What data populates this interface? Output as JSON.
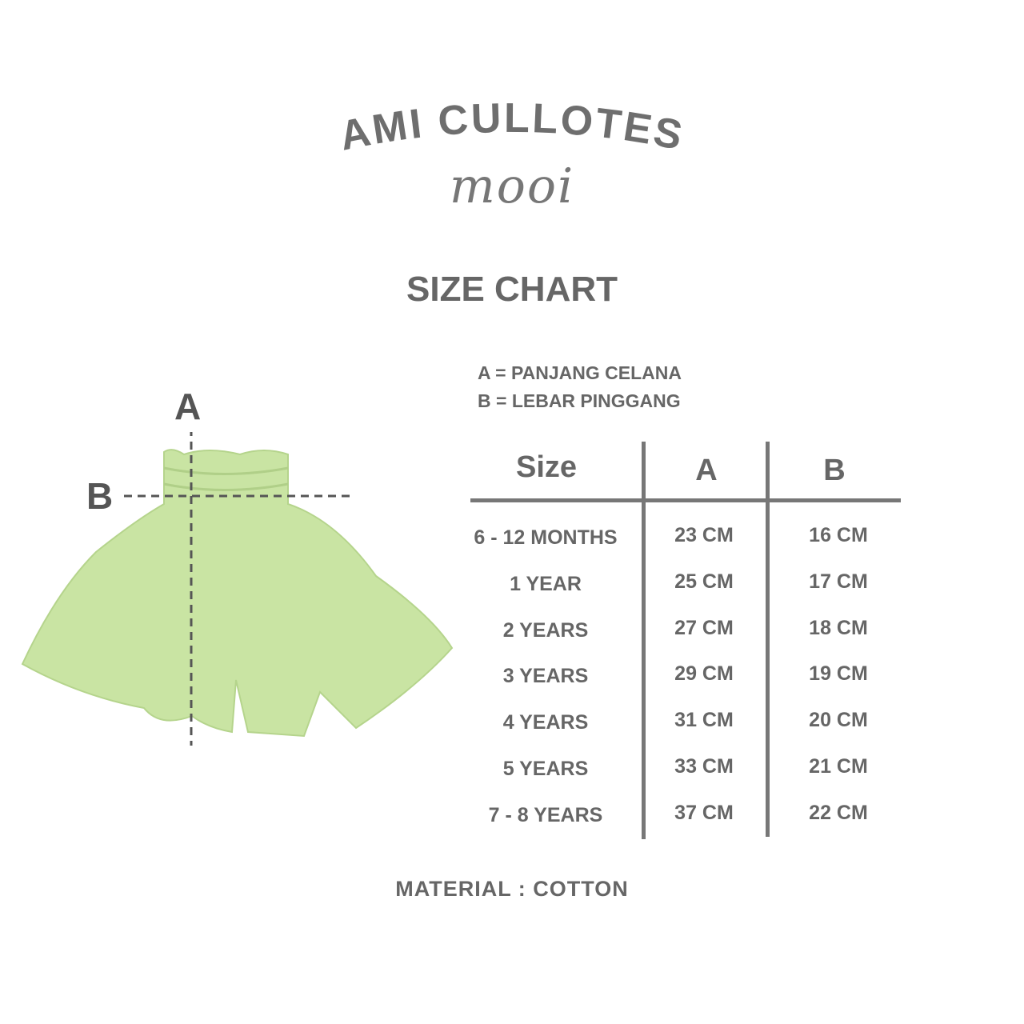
{
  "header": {
    "product_name": "AMI CULLOTES",
    "brand": "mooi"
  },
  "chart_title": "SIZE CHART",
  "legend": [
    "A = PANJANG CELANA",
    "B = LEBAR PINGGANG"
  ],
  "diagram": {
    "label_a": "A",
    "label_b": "B",
    "garment_color": "#c9e4a3"
  },
  "table": {
    "headers": [
      "Size",
      "A",
      "B"
    ],
    "rows": [
      [
        "6 - 12 MONTHS",
        "23 CM",
        "16 CM"
      ],
      [
        "1 YEAR",
        "25 CM",
        "17 CM"
      ],
      [
        "2 YEARS",
        "27 CM",
        "18 CM"
      ],
      [
        "3 YEARS",
        "29 CM",
        "19 CM"
      ],
      [
        "4 YEARS",
        "31 CM",
        "20 CM"
      ],
      [
        "5 YEARS",
        "33 CM",
        "21 CM"
      ],
      [
        "7 - 8 YEARS",
        "37 CM",
        "22 CM"
      ]
    ]
  },
  "footer": {
    "material": "MATERIAL : COTTON"
  }
}
